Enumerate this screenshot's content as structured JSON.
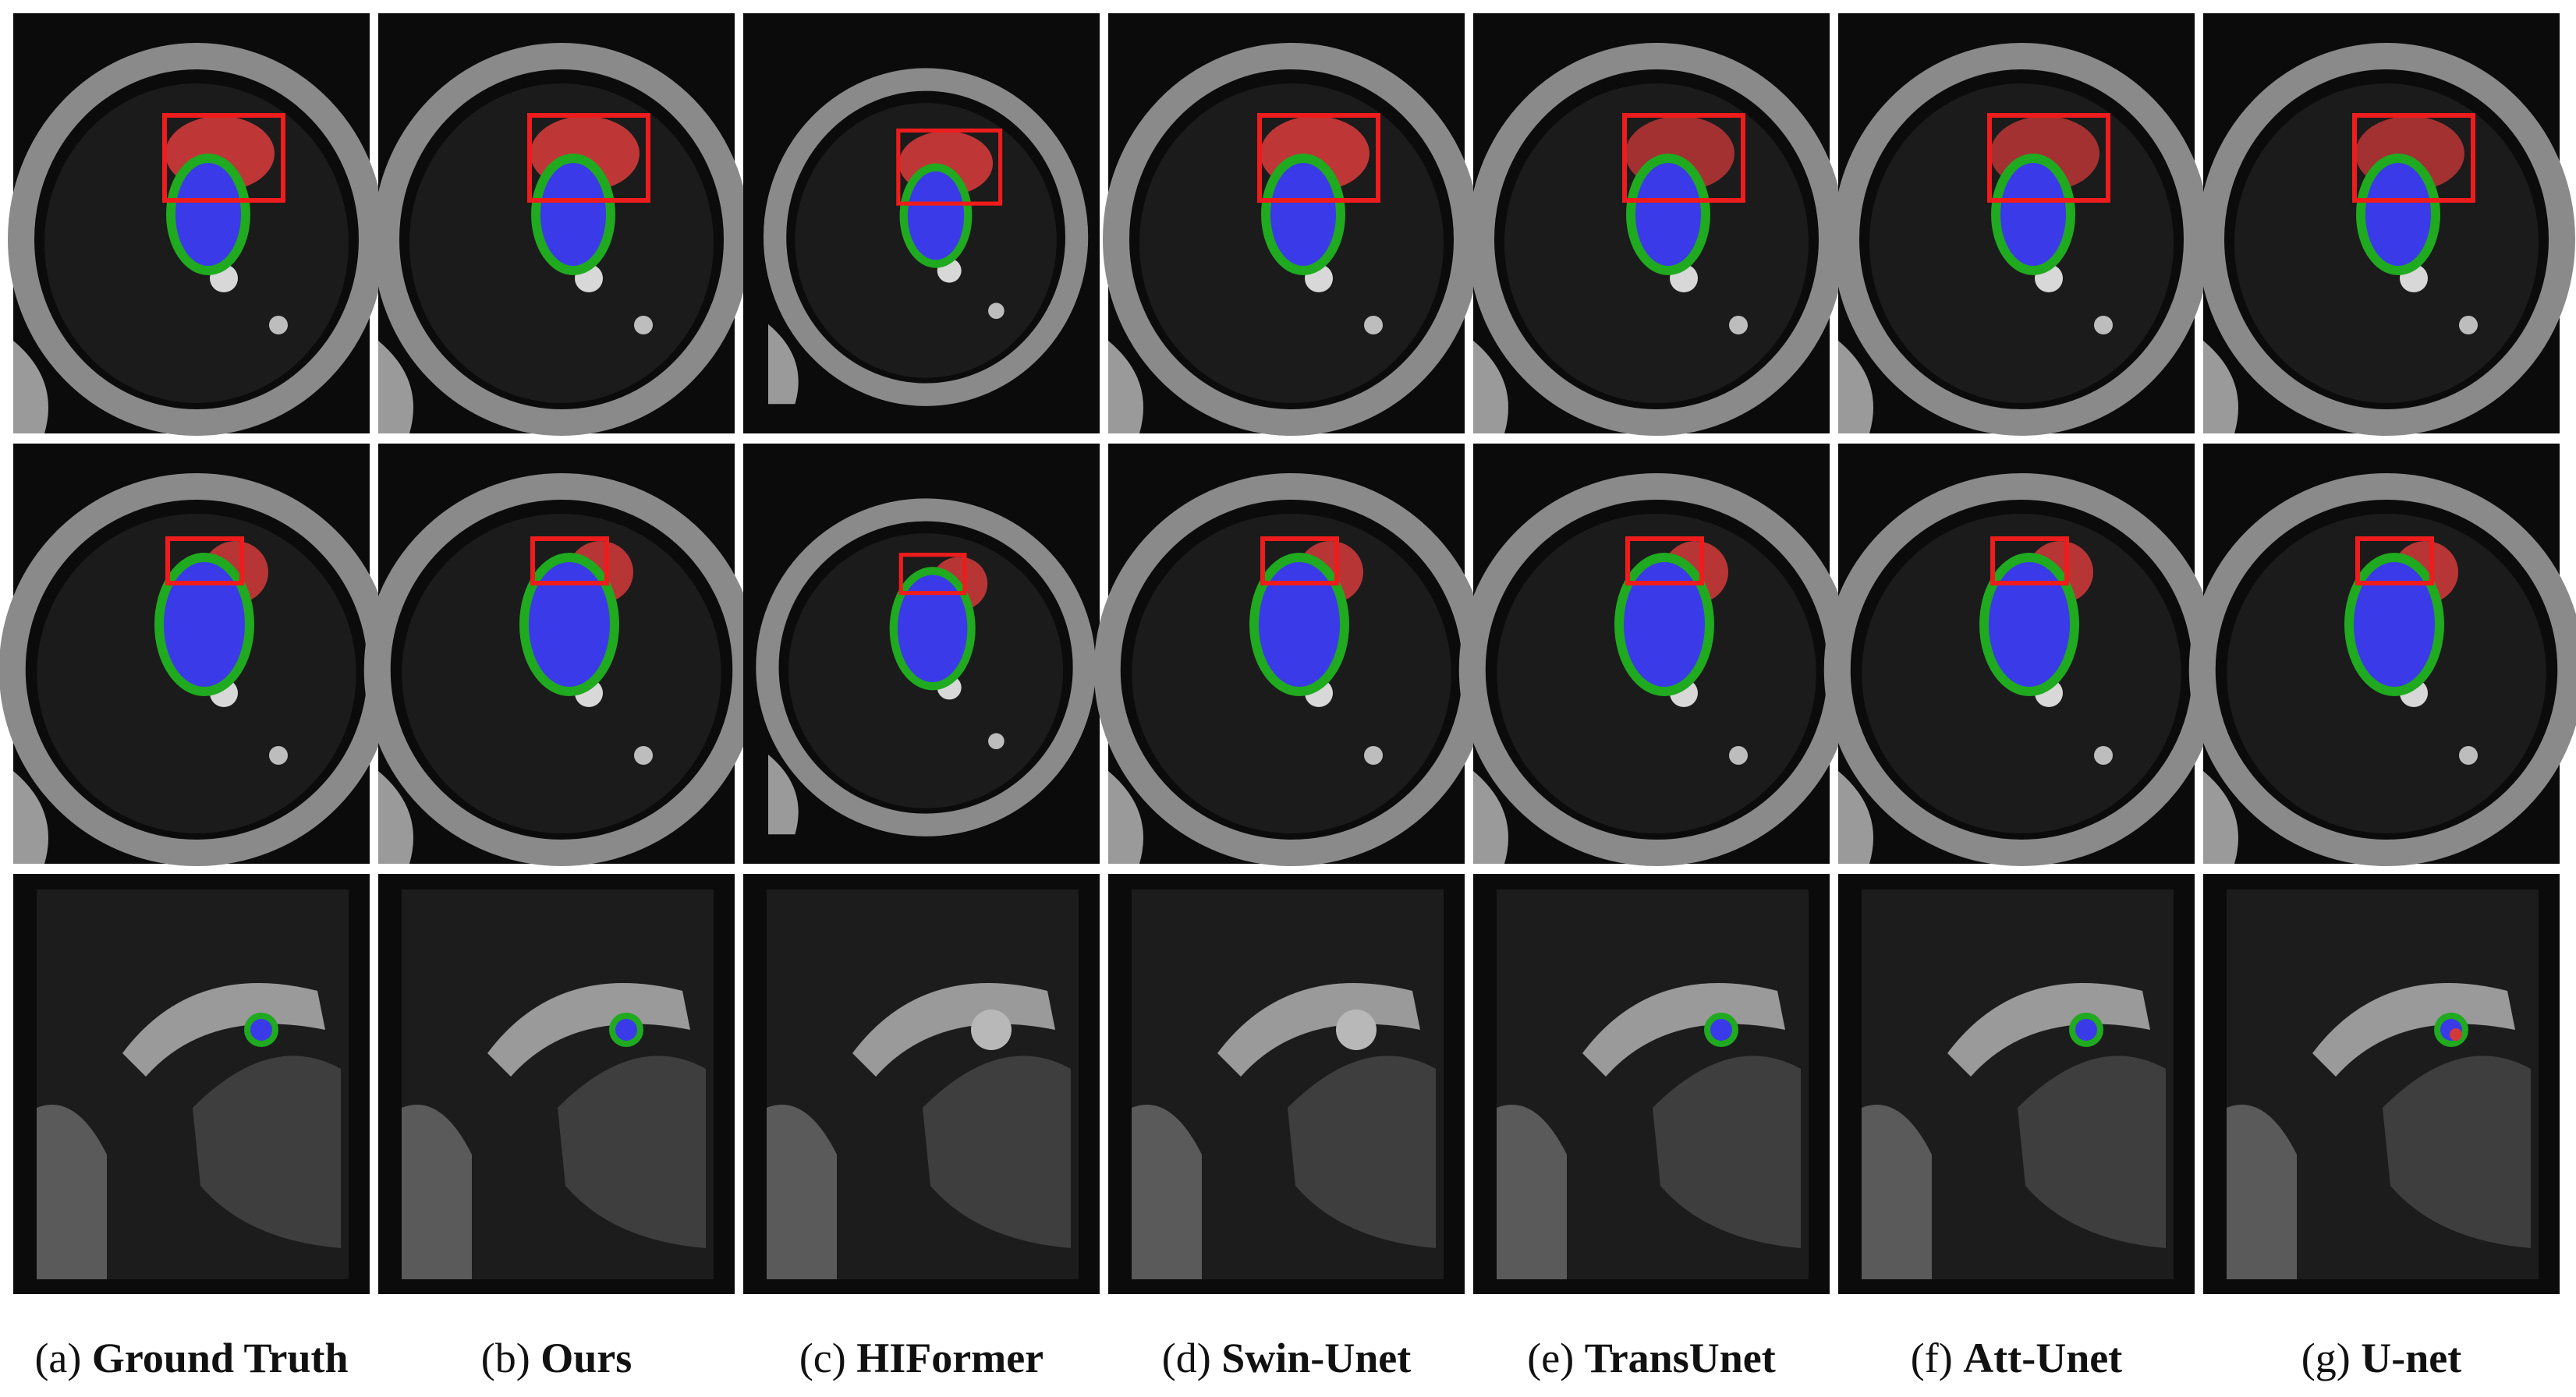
{
  "captions": [
    {
      "letter": "(a)",
      "name": "Ground Truth"
    },
    {
      "letter": "(b)",
      "name": "Ours"
    },
    {
      "letter": "(c)",
      "name": "HIFormer"
    },
    {
      "letter": "(d)",
      "name": "Swin-Unet"
    },
    {
      "letter": "(e)",
      "name": "TransUnet"
    },
    {
      "letter": "(f)",
      "name": "Att-Unet"
    },
    {
      "letter": "(g)",
      "name": "U-net"
    }
  ]
}
